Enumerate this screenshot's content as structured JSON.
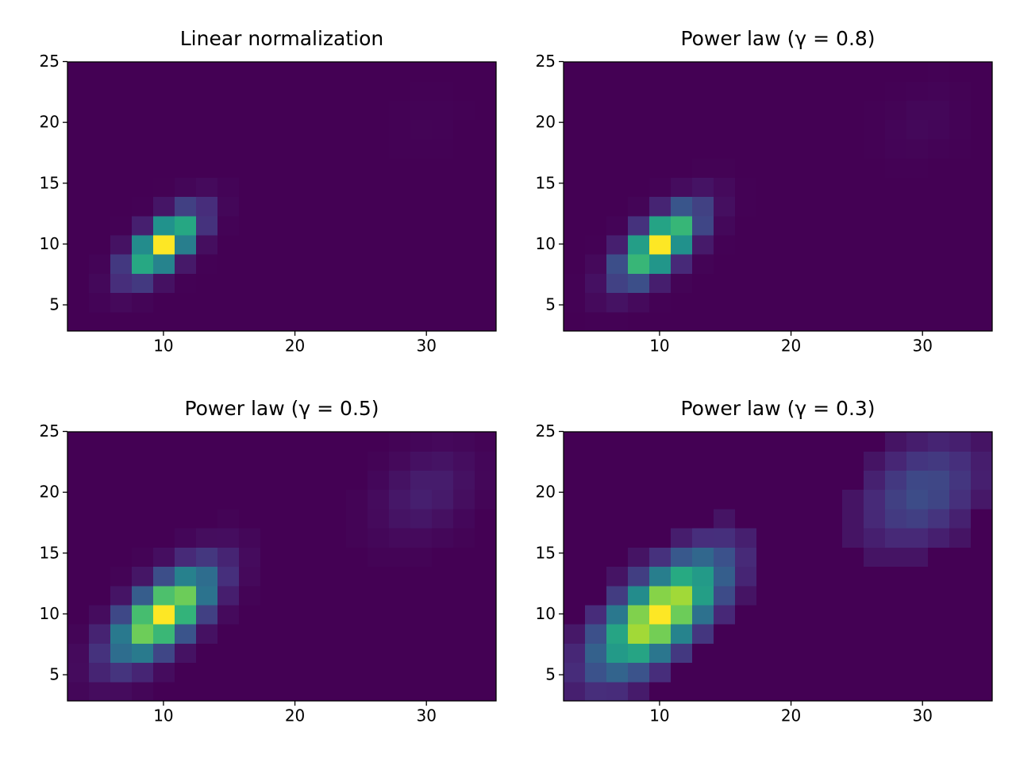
{
  "chart_data": {
    "type": "hist2d",
    "colormap": "viridis",
    "xlim": [
      2.7,
      35.3
    ],
    "ylim": [
      2.85,
      24.97
    ],
    "xticks": [
      10,
      20,
      30
    ],
    "yticks": [
      5,
      10,
      15,
      20,
      25
    ],
    "xbins": [
      2.7,
      4.33,
      5.96,
      7.59,
      9.22,
      10.85,
      12.48,
      14.11,
      15.74,
      17.37,
      19.0,
      20.63,
      22.26,
      23.89,
      25.52,
      27.15,
      28.78,
      30.41,
      32.04,
      33.67,
      35.3
    ],
    "ybins": [
      2.85,
      4.43,
      6.01,
      7.59,
      9.17,
      10.75,
      12.33,
      13.91,
      15.49,
      17.07,
      18.65,
      20.23,
      21.81,
      23.39,
      24.97
    ],
    "counts": [
      [
        5,
        19,
        16,
        3,
        0,
        0,
        0,
        0,
        0,
        0,
        0,
        0,
        0,
        0,
        0,
        0,
        0,
        0,
        0,
        0
      ],
      [
        16,
        177,
        406,
        189,
        18,
        0,
        0,
        0,
        0,
        0,
        0,
        0,
        0,
        0,
        0,
        0,
        0,
        0,
        0,
        0
      ],
      [
        11,
        364,
        2334,
        3045,
        807,
        43,
        0,
        0,
        0,
        0,
        0,
        0,
        0,
        0,
        0,
        0,
        0,
        0,
        0,
        0
      ],
      [
        2,
        167,
        2997,
        10952,
        8120,
        1224,
        38,
        0,
        0,
        0,
        0,
        0,
        0,
        0,
        0,
        0,
        0,
        0,
        0,
        0
      ],
      [
        0,
        17,
        860,
        8808,
        18300,
        7727,
        663,
        12,
        0,
        0,
        0,
        0,
        0,
        0,
        0,
        0,
        0,
        0,
        0,
        0
      ],
      [
        0,
        0,
        55,
        1581,
        9212,
        10897,
        2619,
        128,
        1,
        0,
        0,
        0,
        0,
        0,
        0,
        0,
        0,
        0,
        0,
        0
      ],
      [
        0,
        0,
        1,
        64,
        1037,
        3440,
        2315,
        317,
        9,
        0,
        0,
        0,
        0,
        0,
        0,
        0,
        0,
        0,
        0,
        0
      ],
      [
        0,
        0,
        0,
        1,
        26,
        243,
        458,
        176,
        14,
        0,
        0,
        0,
        0,
        0,
        1,
        1,
        1,
        0,
        0,
        0
      ],
      [
        0,
        0,
        0,
        0,
        0,
        4,
        20,
        22,
        5,
        0,
        0,
        0,
        0,
        1,
        5,
        13,
        13,
        5,
        1,
        0
      ],
      [
        0,
        0,
        0,
        0,
        0,
        0,
        0,
        1,
        0,
        0,
        0,
        0,
        0,
        1,
        13,
        49,
        66,
        33,
        6,
        0
      ],
      [
        0,
        0,
        0,
        0,
        0,
        0,
        0,
        0,
        0,
        0,
        0,
        0,
        0,
        1,
        14,
        73,
        136,
        94,
        24,
        2
      ],
      [
        0,
        0,
        0,
        0,
        0,
        0,
        0,
        0,
        0,
        0,
        0,
        0,
        0,
        0,
        6,
        43,
        110,
        105,
        37,
        5
      ],
      [
        0,
        0,
        0,
        0,
        0,
        0,
        0,
        0,
        0,
        0,
        0,
        0,
        0,
        0,
        1,
        10,
        35,
        46,
        22,
        4
      ],
      [
        0,
        0,
        0,
        0,
        0,
        0,
        0,
        0,
        0,
        0,
        0,
        0,
        0,
        0,
        0,
        1,
        4,
        8,
        5,
        1
      ]
    ],
    "panels": [
      {
        "title": "Linear normalization",
        "norm": "linear"
      },
      {
        "title": "Power law (γ = 0.8)",
        "norm": "power",
        "gamma": 0.8
      },
      {
        "title": "Power law (γ = 0.5)",
        "norm": "power",
        "gamma": 0.5
      },
      {
        "title": "Power law (γ = 0.3)",
        "norm": "power",
        "gamma": 0.3
      }
    ]
  }
}
